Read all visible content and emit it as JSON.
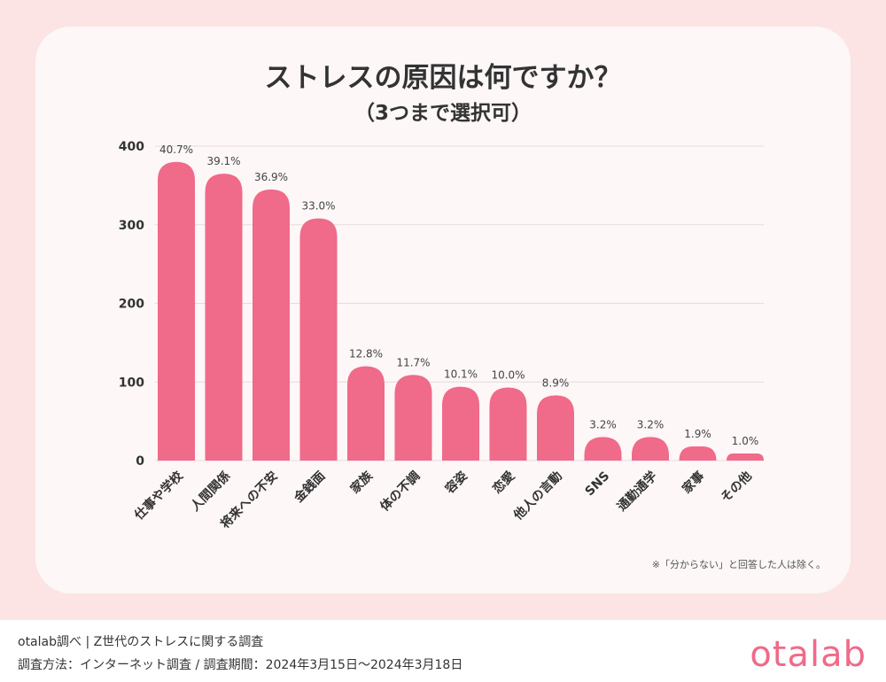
{
  "title": "ストレスの原因は何ですか？",
  "subtitle": "（3つまで選択可）",
  "note": "※「分からない」と回答した人は除く。",
  "footer": {
    "line1": "otalab調べ | Z世代のストレスに関する調査",
    "line2": "調査方法：インターネット調査 / 調査期間：2024年3月15日〜2024年3月18日",
    "logo": "otalab"
  },
  "colors": {
    "bar": "#f06a8a",
    "grid": "#e6dcdc"
  },
  "chart_data": {
    "type": "bar",
    "categories": [
      "仕事や学校",
      "人間関係",
      "将来への不安",
      "金銭面",
      "家族",
      "体の不調",
      "容姿",
      "恋愛",
      "他人の言動",
      "SNS",
      "通勤通学",
      "家事",
      "その他"
    ],
    "values": [
      380,
      365,
      345,
      308,
      120,
      109,
      94,
      93,
      83,
      30,
      30,
      18,
      9
    ],
    "data_labels": [
      "40.7%",
      "39.1%",
      "36.9%",
      "33.0%",
      "12.8%",
      "11.7%",
      "10.1%",
      "10.0%",
      "8.9%",
      "3.2%",
      "3.2%",
      "1.9%",
      "1.0%"
    ],
    "yticks": [
      "0",
      "100",
      "200",
      "300",
      "400"
    ],
    "ylim": [
      0,
      400
    ],
    "grid": true
  }
}
